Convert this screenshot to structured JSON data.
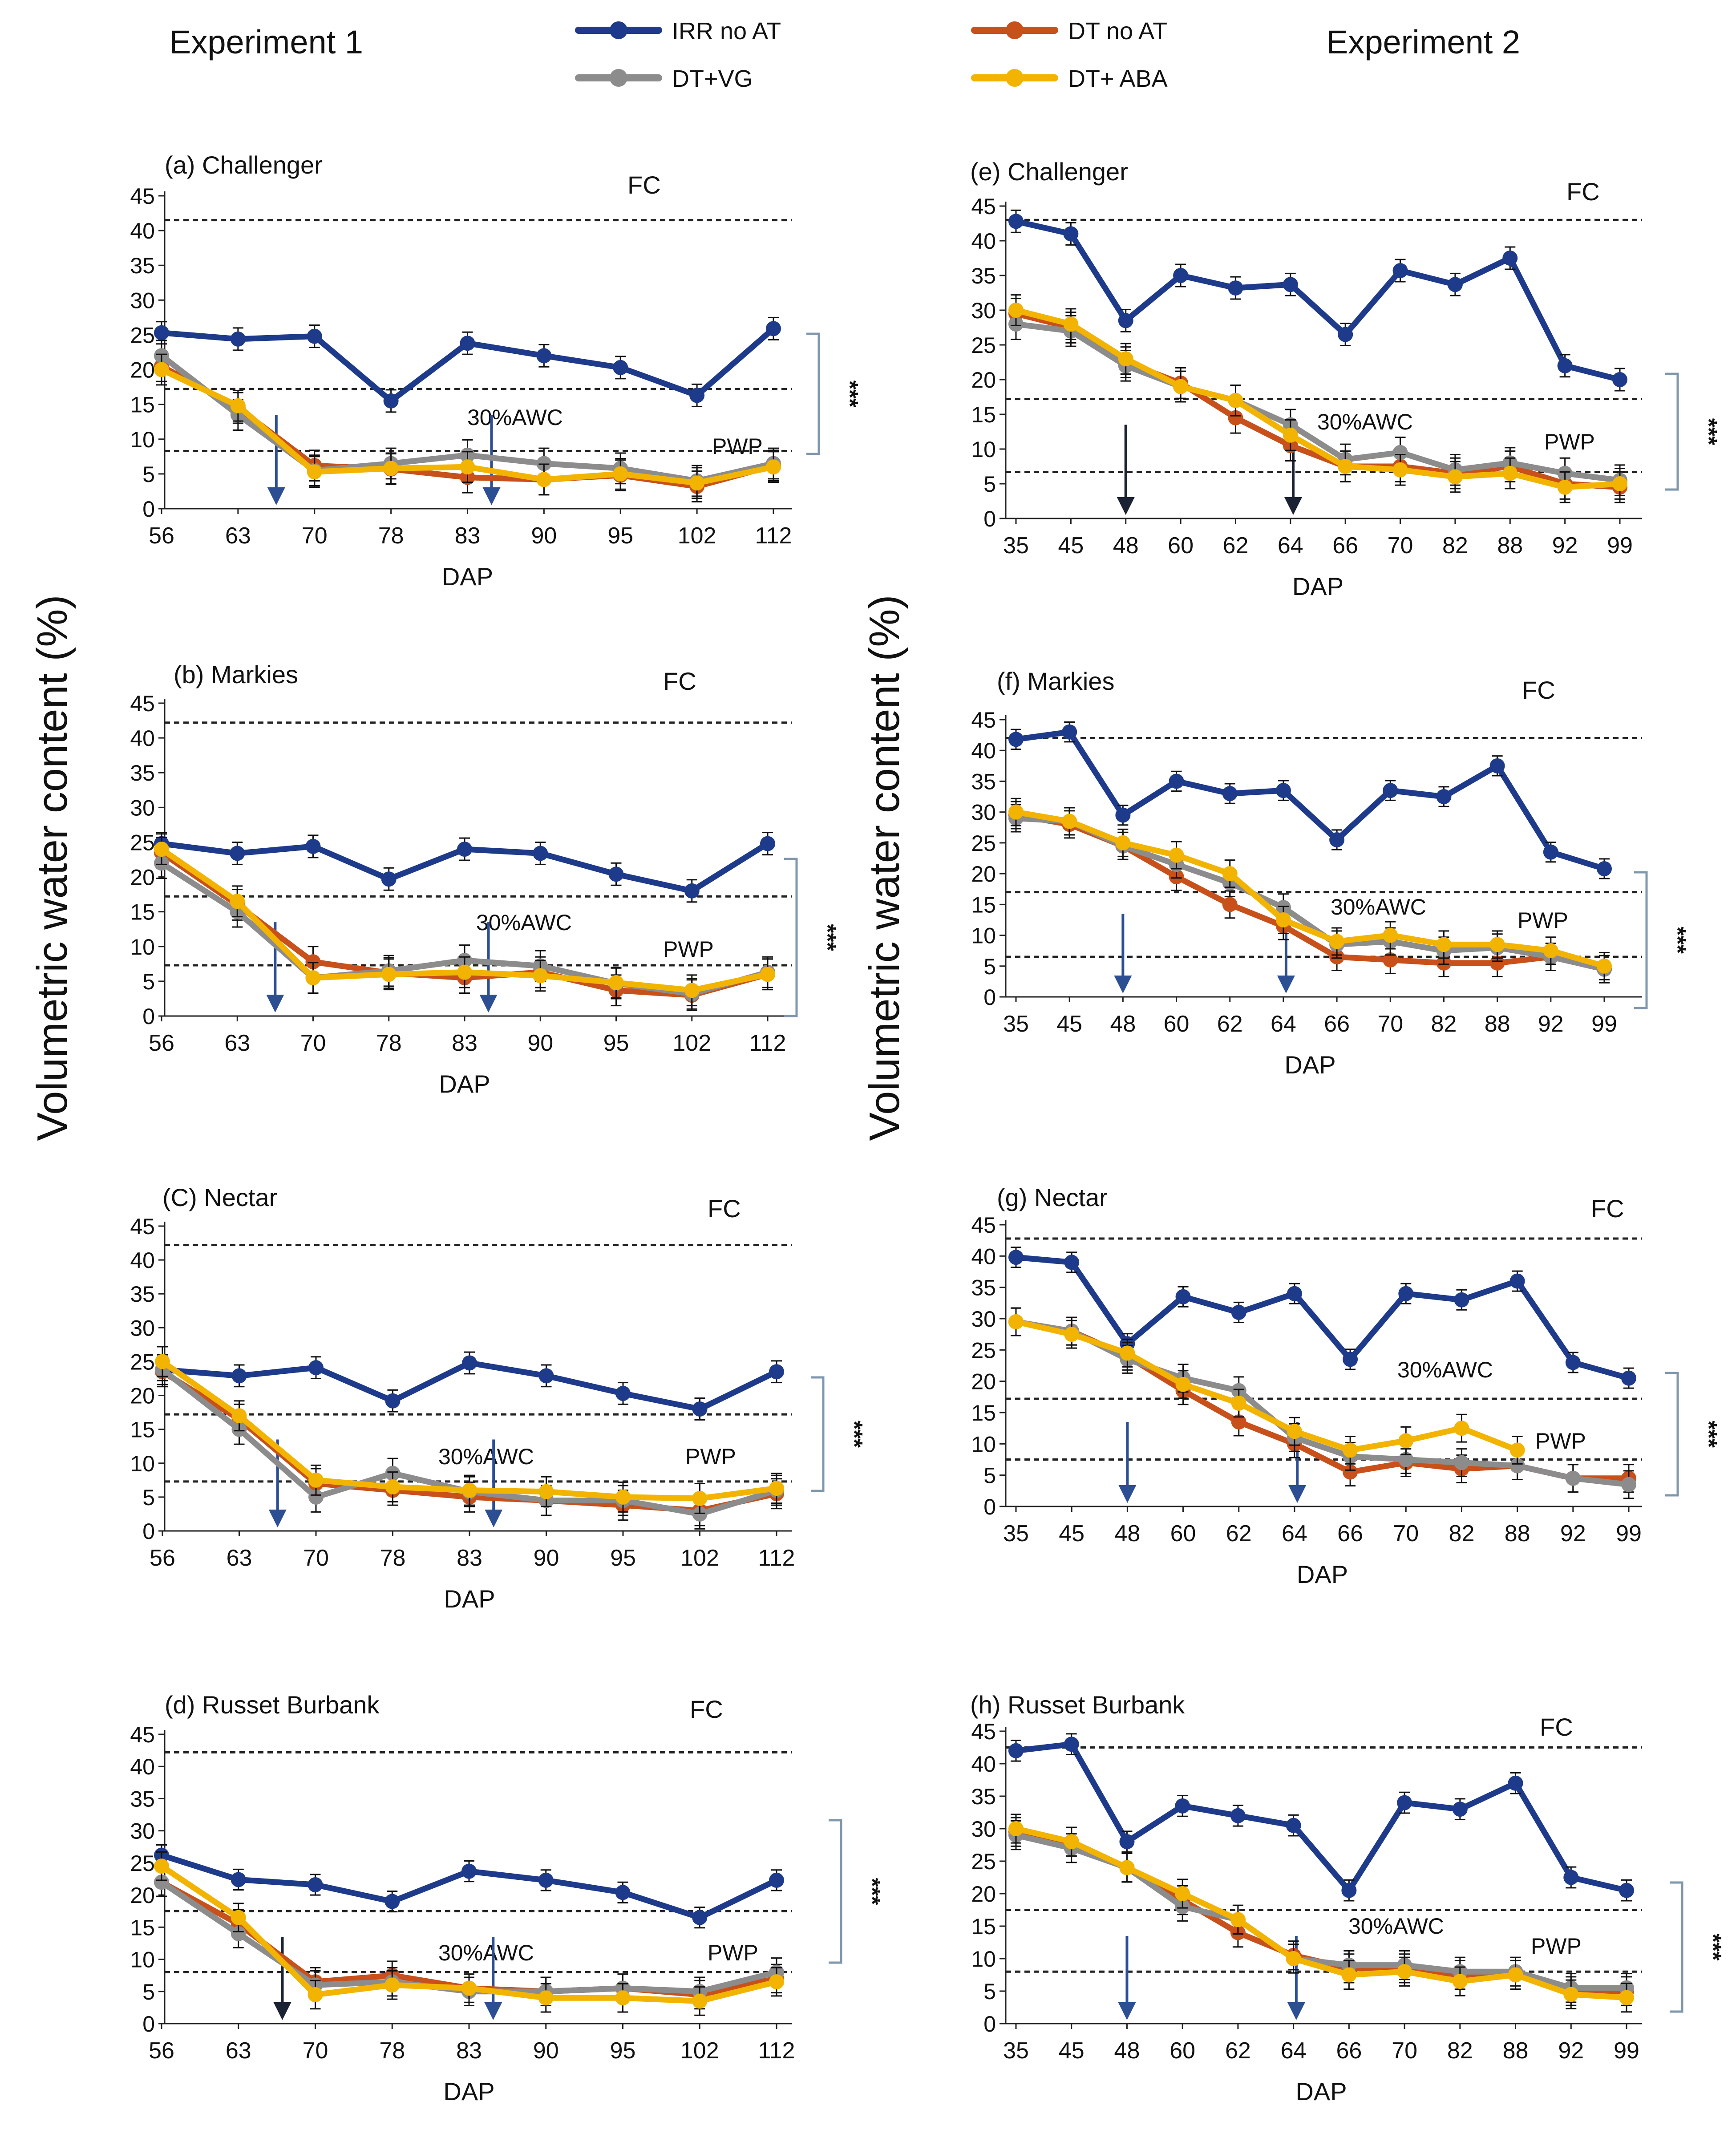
{
  "figure": {
    "experiment1_label": "Experiment 1",
    "experiment2_label": "Experiment 2",
    "ylabel": "Volumetric water content (%)",
    "colors": {
      "IRR no AT": "#1e3a8a",
      "DT no AT": "#c8501a",
      "DT+VG": "#8c8c8c",
      "DT+ ABA": "#f2b400",
      "arrow": "#2c4f94",
      "arrow_dark": "#1a2233",
      "bracket": "#7f97ad"
    }
  },
  "legend": {
    "entries": [
      "IRR no AT",
      "DT no AT",
      "DT+VG",
      "DT+ ABA"
    ]
  },
  "chart_data": [
    {
      "type": "line",
      "title": "(a) Challenger",
      "xlabel": "DAP",
      "categories": [
        "56",
        "63",
        "70",
        "78",
        "83",
        "90",
        "95",
        "102",
        "112"
      ],
      "ylim": [
        0,
        45
      ],
      "yticks": [
        "0",
        "5",
        "10",
        "15",
        "20",
        "25",
        "30",
        "35",
        "40",
        "45"
      ],
      "fc_label": "FC",
      "fc_value": 41.5,
      "awc_label": "30%AWC",
      "awc_value": 17.2,
      "pwp_label": "PWP",
      "pwp_value": 8.3,
      "significance": "***",
      "arrows_at": [
        66.5,
        85.2
      ],
      "series": [
        {
          "name": "IRR no AT",
          "values": [
            25.3,
            24.4,
            24.8,
            15.5,
            23.8,
            22.0,
            20.3,
            16.3,
            25.9
          ]
        },
        {
          "name": "DT no AT",
          "values": [
            20.5,
            14.5,
            6.2,
            5.7,
            4.5,
            4.2,
            4.8,
            3.2,
            6.2
          ]
        },
        {
          "name": "DT+VG",
          "values": [
            22.0,
            13.5,
            5.5,
            6.5,
            7.7,
            6.5,
            5.8,
            4.0,
            6.5
          ]
        },
        {
          "name": "DT+ ABA",
          "values": [
            20.0,
            14.8,
            5.3,
            5.8,
            6.0,
            4.2,
            5.0,
            3.7,
            6.0
          ]
        }
      ]
    },
    {
      "type": "line",
      "title": "(b) Markies",
      "xlabel": "DAP",
      "categories": [
        "56",
        "63",
        "70",
        "78",
        "83",
        "90",
        "95",
        "102",
        "112"
      ],
      "ylim": [
        0,
        45
      ],
      "yticks": [
        "0",
        "5",
        "10",
        "15",
        "20",
        "25",
        "30",
        "35",
        "40",
        "45"
      ],
      "fc_label": "FC",
      "fc_value": 42.2,
      "awc_label": "30%AWC",
      "awc_value": 17.2,
      "pwp_label": "PWP",
      "pwp_value": 7.3,
      "significance": "***",
      "arrows_at": [
        66.5,
        85.2
      ],
      "series": [
        {
          "name": "IRR no AT",
          "values": [
            24.8,
            23.4,
            24.4,
            19.7,
            24.0,
            23.4,
            20.4,
            18.0,
            24.8
          ]
        },
        {
          "name": "DT no AT",
          "values": [
            23.5,
            16.0,
            7.8,
            6.2,
            5.5,
            6.3,
            3.7,
            3.0,
            6.0
          ]
        },
        {
          "name": "DT+VG",
          "values": [
            22.0,
            15.0,
            5.5,
            6.5,
            8.0,
            7.2,
            4.7,
            3.2,
            6.3
          ]
        },
        {
          "name": "DT+ ABA",
          "values": [
            24.0,
            16.5,
            5.5,
            6.0,
            6.3,
            5.8,
            4.8,
            3.7,
            6.0
          ]
        }
      ]
    },
    {
      "type": "line",
      "title": "(C) Nectar",
      "xlabel": "DAP",
      "categories": [
        "56",
        "63",
        "70",
        "78",
        "83",
        "90",
        "95",
        "102",
        "112"
      ],
      "ylim": [
        0,
        45
      ],
      "yticks": [
        "0",
        "5",
        "10",
        "15",
        "20",
        "25",
        "30",
        "35",
        "40",
        "45"
      ],
      "fc_label": "FC",
      "fc_value": 42.2,
      "awc_label": "30%AWC",
      "awc_value": 17.2,
      "pwp_label": "PWP",
      "pwp_value": 7.3,
      "significance": "***",
      "arrows_at": [
        66.5,
        85.2
      ],
      "series": [
        {
          "name": "IRR no AT",
          "values": [
            23.8,
            22.9,
            24.1,
            19.2,
            24.8,
            22.9,
            20.3,
            18.0,
            23.5
          ]
        },
        {
          "name": "DT no AT",
          "values": [
            23.5,
            16.5,
            7.0,
            6.0,
            5.0,
            4.5,
            3.8,
            3.0,
            5.5
          ]
        },
        {
          "name": "DT+VG",
          "values": [
            23.8,
            15.0,
            5.0,
            8.5,
            5.8,
            4.5,
            4.5,
            2.5,
            6.0
          ]
        },
        {
          "name": "DT+ ABA",
          "values": [
            25.0,
            17.0,
            7.5,
            6.5,
            6.0,
            5.8,
            5.0,
            4.8,
            6.3
          ]
        }
      ]
    },
    {
      "type": "line",
      "title": "(d) Russet Burbank",
      "xlabel": "DAP",
      "categories": [
        "56",
        "63",
        "70",
        "78",
        "83",
        "90",
        "95",
        "102",
        "112"
      ],
      "ylim": [
        0,
        45
      ],
      "yticks": [
        "0",
        "5",
        "10",
        "15",
        "20",
        "25",
        "30",
        "35",
        "40",
        "45"
      ],
      "fc_label": "FC",
      "fc_value": 42.2,
      "awc_label": "30%AWC",
      "awc_value": 17.5,
      "pwp_label": "PWP",
      "pwp_value": 8.0,
      "significance": "***",
      "arrows_at": [
        67.0,
        85.2
      ],
      "series": [
        {
          "name": "IRR no AT",
          "values": [
            26.2,
            22.4,
            21.6,
            19.0,
            23.7,
            22.3,
            20.4,
            16.5,
            22.3
          ]
        },
        {
          "name": "DT no AT",
          "values": [
            22.0,
            15.5,
            6.5,
            7.5,
            5.5,
            5.0,
            5.5,
            4.5,
            7.0
          ]
        },
        {
          "name": "DT+VG",
          "values": [
            22.0,
            14.0,
            6.0,
            6.5,
            5.0,
            5.0,
            5.5,
            5.0,
            8.0
          ]
        },
        {
          "name": "DT+ ABA",
          "values": [
            24.5,
            16.5,
            4.5,
            6.0,
            5.5,
            4.0,
            4.0,
            3.5,
            6.5
          ]
        }
      ]
    },
    {
      "type": "line",
      "title": "(e) Challenger",
      "xlabel": "DAP",
      "categories": [
        "35",
        "45",
        "48",
        "60",
        "62",
        "64",
        "66",
        "70",
        "82",
        "88",
        "92",
        "99"
      ],
      "ylim": [
        0,
        45
      ],
      "yticks": [
        "0",
        "5",
        "10",
        "15",
        "20",
        "25",
        "30",
        "35",
        "40",
        "45"
      ],
      "fc_label": "FC",
      "fc_value": 43.0,
      "awc_label": "30%AWC",
      "awc_value": 17.2,
      "pwp_label": "PWP",
      "pwp_value": 6.7,
      "significance": "***",
      "arrows_at": [
        48,
        64.1
      ],
      "series": [
        {
          "name": "IRR no AT",
          "values": [
            42.8,
            41.0,
            28.5,
            35.0,
            33.2,
            33.7,
            26.5,
            35.7,
            33.7,
            37.5,
            22.0,
            20.0
          ]
        },
        {
          "name": "DT no AT",
          "values": [
            29.5,
            27.5,
            22.5,
            19.5,
            14.5,
            10.5,
            7.5,
            7.5,
            6.5,
            7.5,
            5.0,
            4.5
          ]
        },
        {
          "name": "DT+VG",
          "values": [
            28.0,
            27.0,
            22.0,
            19.0,
            17.0,
            13.5,
            8.5,
            9.5,
            7.0,
            8.0,
            6.5,
            5.5
          ]
        },
        {
          "name": "DT+ ABA",
          "values": [
            30.0,
            28.0,
            23.0,
            19.0,
            17.0,
            12.0,
            7.5,
            7.0,
            6.0,
            6.5,
            4.5,
            5.0
          ]
        }
      ]
    },
    {
      "type": "line",
      "title": "(f) Markies",
      "xlabel": "DAP",
      "categories": [
        "35",
        "45",
        "48",
        "60",
        "62",
        "64",
        "66",
        "70",
        "82",
        "88",
        "92",
        "99"
      ],
      "ylim": [
        0,
        45
      ],
      "yticks": [
        "0",
        "5",
        "10",
        "15",
        "20",
        "25",
        "30",
        "35",
        "40",
        "45"
      ],
      "fc_label": "FC",
      "fc_value": 42.0,
      "awc_label": "30%AWC",
      "awc_value": 17.0,
      "pwp_label": "PWP",
      "pwp_value": 6.5,
      "significance": "***",
      "arrows_at": [
        48,
        64.1
      ],
      "series": [
        {
          "name": "IRR no AT",
          "values": [
            41.8,
            43.0,
            29.5,
            35.0,
            33.0,
            33.5,
            25.5,
            33.5,
            32.5,
            37.5,
            23.5,
            20.8
          ]
        },
        {
          "name": "DT no AT",
          "values": [
            29.5,
            28.0,
            24.5,
            19.5,
            15.0,
            11.5,
            6.5,
            6.0,
            5.5,
            5.5,
            6.5,
            4.5
          ]
        },
        {
          "name": "DT+VG",
          "values": [
            29.0,
            28.5,
            24.5,
            21.5,
            18.5,
            14.5,
            8.5,
            9.0,
            7.5,
            8.0,
            6.5,
            4.5
          ]
        },
        {
          "name": "DT+ ABA",
          "values": [
            30.0,
            28.5,
            25.0,
            23.0,
            20.0,
            12.5,
            9.0,
            10.0,
            8.5,
            8.5,
            7.5,
            5.0
          ]
        }
      ]
    },
    {
      "type": "line",
      "title": "(g) Nectar",
      "xlabel": "DAP",
      "categories": [
        "35",
        "45",
        "48",
        "60",
        "62",
        "64",
        "66",
        "70",
        "82",
        "88",
        "92",
        "99"
      ],
      "ylim": [
        0,
        45
      ],
      "yticks": [
        "0",
        "5",
        "10",
        "15",
        "20",
        "25",
        "30",
        "35",
        "40",
        "45"
      ],
      "fc_label": "FC",
      "fc_value": 42.8,
      "awc_label": "30%AWC",
      "awc_value": 17.2,
      "pwp_label": "PWP",
      "pwp_value": 7.5,
      "significance": "***",
      "arrows_at": [
        48,
        64.1
      ],
      "series": [
        {
          "name": "IRR no AT",
          "values": [
            39.8,
            39.0,
            26.0,
            33.5,
            31.0,
            34.0,
            23.5,
            34.0,
            33.0,
            36.0,
            23.0,
            20.5
          ]
        },
        {
          "name": "DT no AT",
          "values": [
            29.5,
            28.0,
            24.0,
            18.5,
            13.5,
            10.0,
            5.5,
            7.0,
            6.0,
            6.5,
            4.5,
            4.5
          ]
        },
        {
          "name": "DT+VG",
          "values": [
            29.5,
            28.0,
            23.5,
            20.5,
            18.5,
            11.0,
            8.0,
            7.5,
            7.0,
            6.5,
            4.5,
            3.5
          ]
        },
        {
          "name": "DT+ ABA",
          "values": [
            29.5,
            27.5,
            24.5,
            19.5,
            16.5,
            12.0,
            9.0,
            10.5,
            12.5,
            9.0,
            null,
            null
          ]
        }
      ]
    },
    {
      "type": "line",
      "title": "(h) Russet Burbank",
      "xlabel": "DAP",
      "categories": [
        "35",
        "45",
        "48",
        "60",
        "62",
        "64",
        "66",
        "70",
        "82",
        "88",
        "92",
        "99"
      ],
      "ylim": [
        0,
        45
      ],
      "yticks": [
        "0",
        "5",
        "10",
        "15",
        "20",
        "25",
        "30",
        "35",
        "40",
        "45"
      ],
      "fc_label": "FC",
      "fc_value": 42.5,
      "awc_label": "30%AWC",
      "awc_value": 17.5,
      "pwp_label": "PWP",
      "pwp_value": 8.0,
      "significance": "***",
      "arrows_at": [
        48,
        64.1
      ],
      "series": [
        {
          "name": "IRR no AT",
          "values": [
            42.0,
            43.0,
            28.0,
            33.5,
            32.0,
            30.5,
            20.5,
            34.0,
            33.0,
            37.0,
            22.5,
            20.5
          ]
        },
        {
          "name": "DT no AT",
          "values": [
            29.5,
            28.0,
            24.0,
            19.0,
            14.0,
            10.5,
            8.5,
            8.5,
            7.5,
            7.5,
            5.0,
            5.0
          ]
        },
        {
          "name": "DT+VG",
          "values": [
            29.0,
            27.0,
            24.0,
            18.0,
            16.0,
            10.0,
            9.0,
            9.0,
            8.0,
            8.0,
            5.5,
            5.5
          ]
        },
        {
          "name": "DT+ ABA",
          "values": [
            30.0,
            28.0,
            24.0,
            20.0,
            16.0,
            10.0,
            7.5,
            8.0,
            6.5,
            7.5,
            4.5,
            4.0
          ]
        }
      ]
    }
  ]
}
